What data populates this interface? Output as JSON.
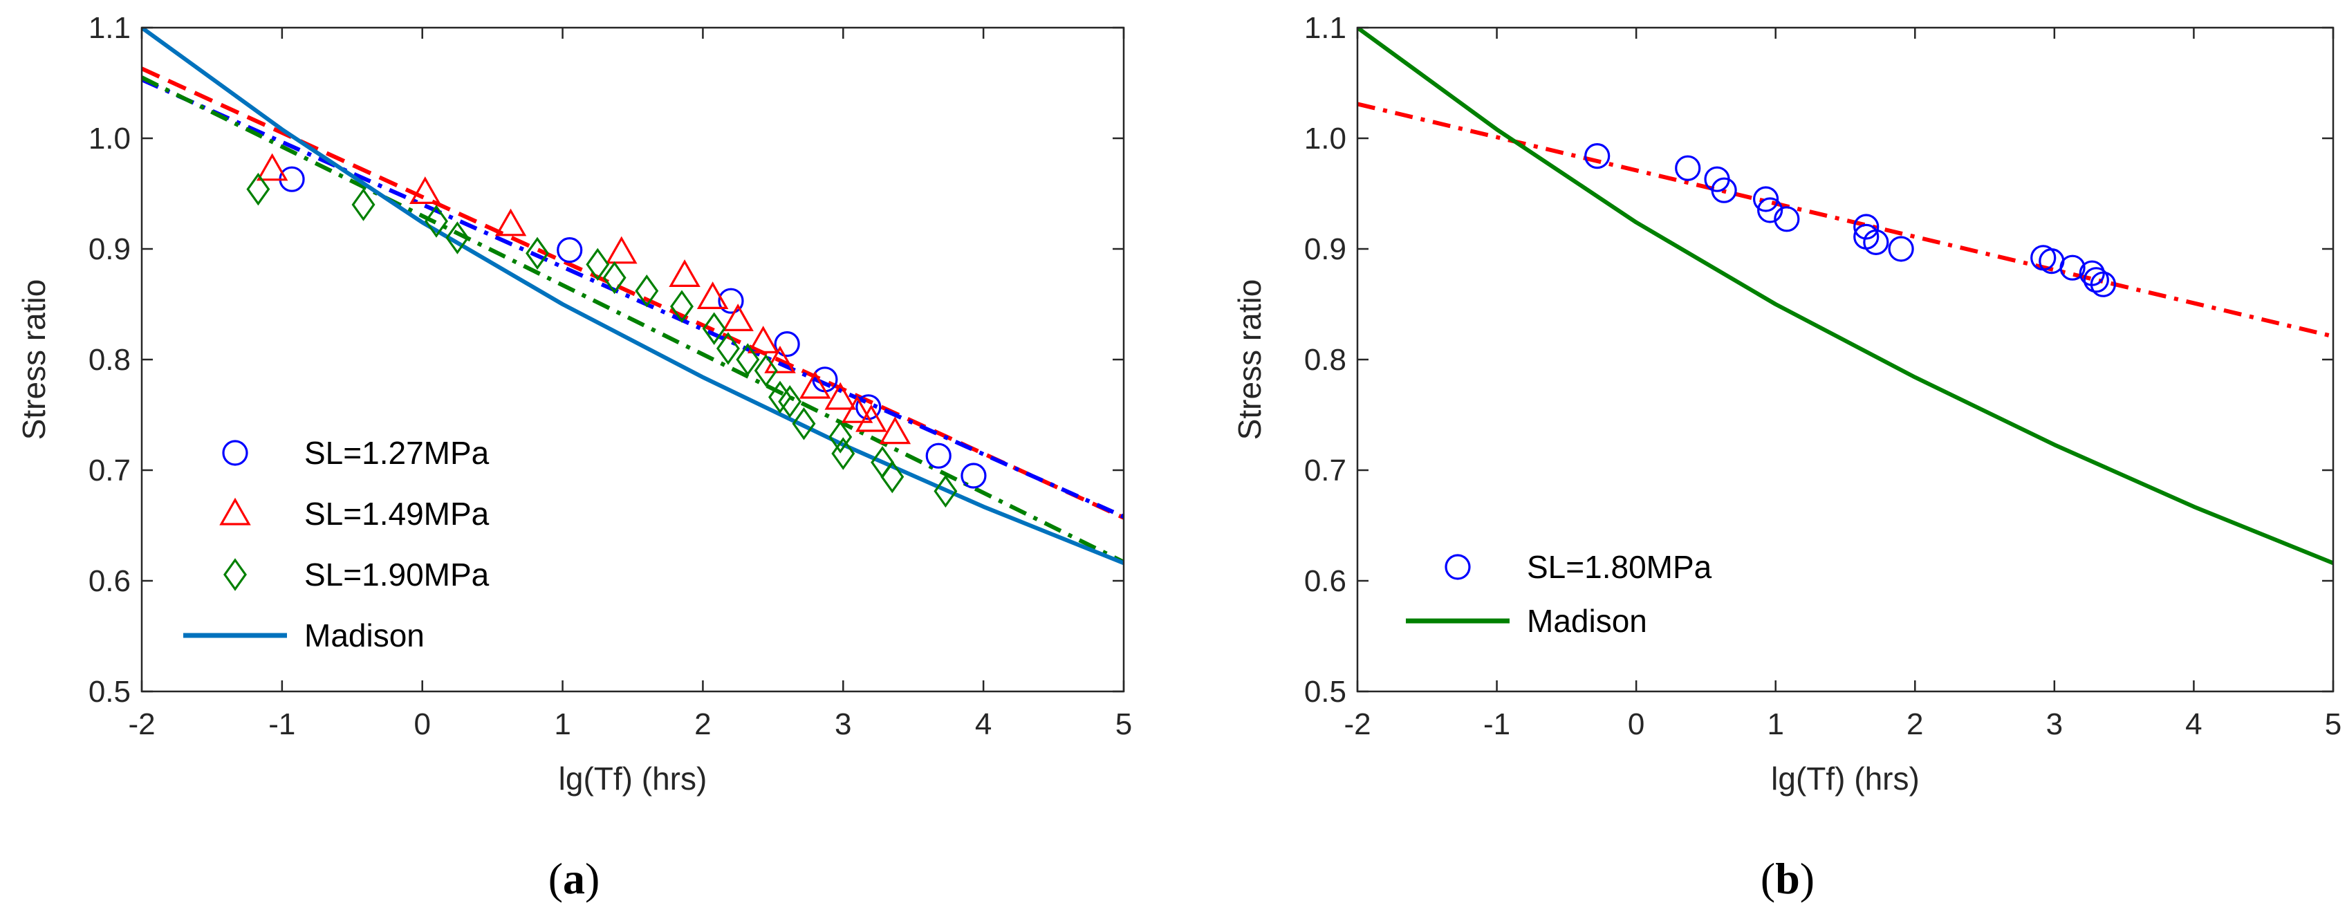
{
  "chart_data": [
    {
      "panel": "a",
      "type": "scatter",
      "caption_open": "(",
      "caption_letter": "a",
      "caption_close": ")",
      "xlabel": "lg(Tf) (hrs)",
      "ylabel": "Stress ratio",
      "xlim": [
        -2,
        5
      ],
      "ylim": [
        0.5,
        1.1
      ],
      "xticks": [
        -2,
        -1,
        0,
        1,
        2,
        3,
        4,
        5
      ],
      "yticks": [
        0.5,
        0.6,
        0.7,
        0.8,
        0.9,
        1.0,
        1.1
      ],
      "xtick_labels": [
        "-2",
        "-1",
        "0",
        "1",
        "2",
        "3",
        "4",
        "5"
      ],
      "ytick_labels": [
        "0.5",
        "0.6",
        "0.7",
        "0.8",
        "0.9",
        "1.0",
        "1.1"
      ],
      "grid": false,
      "legend_position": "lower-left",
      "series": [
        {
          "name": "SL=1.27MPa",
          "marker": "circle",
          "color": "#0000ff",
          "points": [
            [
              -0.93,
              0.963
            ],
            [
              1.05,
              0.899
            ],
            [
              2.2,
              0.853
            ],
            [
              2.6,
              0.814
            ],
            [
              2.87,
              0.782
            ],
            [
              3.18,
              0.757
            ],
            [
              3.68,
              0.713
            ],
            [
              3.93,
              0.695
            ]
          ]
        },
        {
          "name": "SL=1.49MPa",
          "marker": "triangle",
          "color": "#ff0000",
          "points": [
            [
              -1.07,
              0.972
            ],
            [
              0.02,
              0.951
            ],
            [
              0.63,
              0.922
            ],
            [
              1.42,
              0.897
            ],
            [
              1.87,
              0.876
            ],
            [
              2.07,
              0.856
            ],
            [
              2.25,
              0.836
            ],
            [
              2.43,
              0.816
            ],
            [
              2.55,
              0.798
            ],
            [
              2.8,
              0.775
            ],
            [
              2.98,
              0.765
            ],
            [
              3.1,
              0.753
            ],
            [
              3.2,
              0.745
            ],
            [
              3.37,
              0.734
            ]
          ]
        },
        {
          "name": "SL=1.90MPa",
          "marker": "diamond",
          "color": "#008000",
          "points": [
            [
              -1.17,
              0.954
            ],
            [
              -0.42,
              0.94
            ],
            [
              0.1,
              0.925
            ],
            [
              0.25,
              0.91
            ],
            [
              0.82,
              0.896
            ],
            [
              1.25,
              0.886
            ],
            [
              1.37,
              0.874
            ],
            [
              1.6,
              0.862
            ],
            [
              1.85,
              0.848
            ],
            [
              2.08,
              0.828
            ],
            [
              2.18,
              0.81
            ],
            [
              2.32,
              0.8
            ],
            [
              2.45,
              0.79
            ],
            [
              2.55,
              0.766
            ],
            [
              2.62,
              0.762
            ],
            [
              2.72,
              0.742
            ],
            [
              2.98,
              0.73
            ],
            [
              3.0,
              0.715
            ],
            [
              3.28,
              0.707
            ],
            [
              3.35,
              0.694
            ],
            [
              3.73,
              0.681
            ]
          ]
        }
      ],
      "lines": [
        {
          "name": "SL=1.49MPa fit",
          "style": "dashed",
          "color": "#ff0000",
          "x": [
            -2,
            5
          ],
          "y": [
            1.063,
            0.657
          ]
        },
        {
          "name": "SL=1.27MPa fit",
          "style": "dashdot",
          "color": "#0000ff",
          "x": [
            -2,
            5
          ],
          "y": [
            1.053,
            0.658
          ]
        },
        {
          "name": "SL=1.90MPa fit",
          "style": "dashdot",
          "color": "#008000",
          "x": [
            -2,
            5
          ],
          "y": [
            1.055,
            0.617
          ]
        },
        {
          "name": "Madison",
          "style": "solid",
          "color": "#0072bd",
          "x": [
            -2,
            -1,
            0,
            1,
            2,
            3,
            4,
            5
          ],
          "y": [
            1.1,
            1.008,
            0.924,
            0.85,
            0.784,
            0.723,
            0.667,
            0.616
          ]
        }
      ],
      "legend": [
        {
          "label": "SL=1.27MPa",
          "marker": "circle",
          "color": "#0000ff"
        },
        {
          "label": "SL=1.49MPa",
          "marker": "triangle",
          "color": "#ff0000"
        },
        {
          "label": "SL=1.90MPa",
          "marker": "diamond",
          "color": "#008000"
        },
        {
          "label": "Madison",
          "marker": "line",
          "color": "#0072bd"
        }
      ]
    },
    {
      "panel": "b",
      "type": "scatter",
      "caption_open": "(",
      "caption_letter": "b",
      "caption_close": ")",
      "xlabel": "lg(Tf) (hrs)",
      "ylabel": "Stress ratio",
      "xlim": [
        -2,
        5
      ],
      "ylim": [
        0.5,
        1.1
      ],
      "xticks": [
        -2,
        -1,
        0,
        1,
        2,
        3,
        4,
        5
      ],
      "yticks": [
        0.5,
        0.6,
        0.7,
        0.8,
        0.9,
        1.0,
        1.1
      ],
      "xtick_labels": [
        "-2",
        "-1",
        "0",
        "1",
        "2",
        "3",
        "4",
        "5"
      ],
      "ytick_labels": [
        "0.5",
        "0.6",
        "0.7",
        "0.8",
        "0.9",
        "1.0",
        "1.1"
      ],
      "grid": false,
      "legend_position": "lower-left",
      "series": [
        {
          "name": "SL=1.80MPa",
          "marker": "circle",
          "color": "#0000ff",
          "points": [
            [
              -0.28,
              0.984
            ],
            [
              0.37,
              0.973
            ],
            [
              0.58,
              0.963
            ],
            [
              0.63,
              0.953
            ],
            [
              0.93,
              0.945
            ],
            [
              0.96,
              0.935
            ],
            [
              1.08,
              0.927
            ],
            [
              1.65,
              0.92
            ],
            [
              1.65,
              0.911
            ],
            [
              1.72,
              0.906
            ],
            [
              1.9,
              0.9
            ],
            [
              2.92,
              0.892
            ],
            [
              2.98,
              0.889
            ],
            [
              3.13,
              0.883
            ],
            [
              3.27,
              0.878
            ],
            [
              3.3,
              0.872
            ],
            [
              3.35,
              0.868
            ]
          ]
        }
      ],
      "lines": [
        {
          "name": "SL=1.80MPa fit",
          "style": "dashdot",
          "color": "#ff0000",
          "x": [
            -2,
            5
          ],
          "y": [
            1.031,
            0.821
          ]
        },
        {
          "name": "Madison",
          "style": "solid",
          "color": "#008000",
          "x": [
            -2,
            -1,
            0,
            1,
            2,
            3,
            4,
            5
          ],
          "y": [
            1.1,
            1.008,
            0.924,
            0.85,
            0.784,
            0.723,
            0.667,
            0.616
          ]
        }
      ],
      "legend": [
        {
          "label": "SL=1.80MPa",
          "marker": "circle",
          "color": "#0000ff"
        },
        {
          "label": "Madison",
          "marker": "line",
          "color": "#008000"
        }
      ]
    }
  ]
}
